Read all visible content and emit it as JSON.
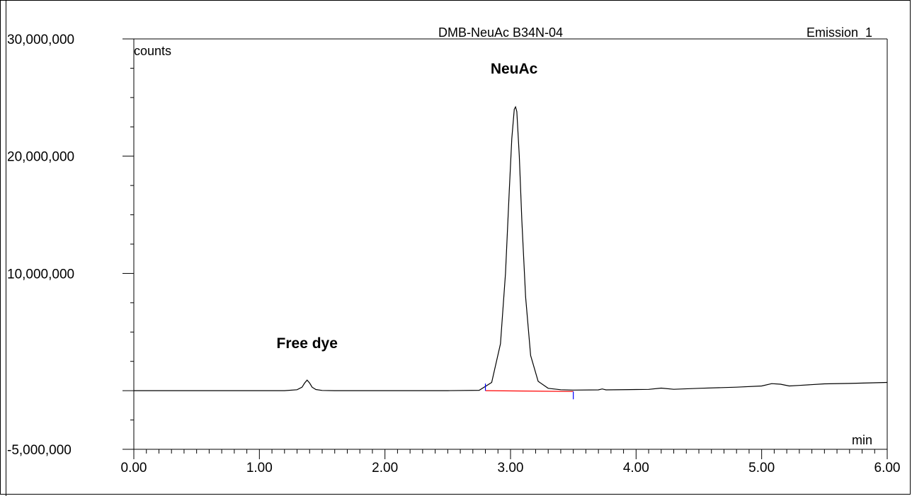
{
  "chart_data": {
    "type": "line",
    "title": "DMB-NeuAc B34N-04",
    "channel": "Emission_1",
    "xlabel": "min",
    "ylabel": "counts",
    "xlim": [
      0,
      6
    ],
    "ylim": [
      -5000000,
      30000000
    ],
    "x_ticks": [
      "0.00",
      "1.00",
      "2.00",
      "3.00",
      "4.00",
      "5.00",
      "6.00"
    ],
    "y_ticks": [
      "30,000,000",
      "20,000,000",
      "10,000,000",
      "-5,000,000"
    ],
    "annotations": [
      {
        "label": "Free dye",
        "x": 1.38,
        "y": 500000
      },
      {
        "label": "NeuAc",
        "x": 3.04,
        "y": 24200000
      }
    ],
    "series": [
      {
        "x": [
          0.0,
          0.5,
          1.0,
          1.2,
          1.3,
          1.34,
          1.36,
          1.38,
          1.4,
          1.42,
          1.45,
          1.5,
          1.6,
          2.0,
          2.5,
          2.75,
          2.85,
          2.92,
          2.96,
          2.99,
          3.01,
          3.03,
          3.04,
          3.05,
          3.07,
          3.09,
          3.12,
          3.16,
          3.22,
          3.3,
          3.4,
          3.5,
          3.7,
          3.73,
          3.76,
          4.0,
          4.1,
          4.2,
          4.3,
          4.5,
          4.8,
          5.0,
          5.08,
          5.15,
          5.22,
          5.3,
          5.5,
          5.7,
          6.0
        ],
        "y": [
          0,
          0,
          0,
          0,
          80000,
          300000,
          650000,
          900000,
          650000,
          300000,
          100000,
          20000,
          0,
          0,
          0,
          30000,
          700000,
          4000000,
          10000000,
          17000000,
          21500000,
          24000000,
          24200000,
          23800000,
          20000000,
          14500000,
          8000000,
          3000000,
          800000,
          200000,
          80000,
          50000,
          70000,
          150000,
          70000,
          100000,
          110000,
          220000,
          120000,
          200000,
          300000,
          400000,
          600000,
          550000,
          400000,
          450000,
          580000,
          620000,
          700000
        ]
      }
    ],
    "integration": {
      "baseline_x": [
        2.8,
        3.5
      ],
      "baseline_y": [
        0,
        -70000
      ],
      "color": "#ff0000",
      "marker_color": "#0000ff"
    }
  }
}
